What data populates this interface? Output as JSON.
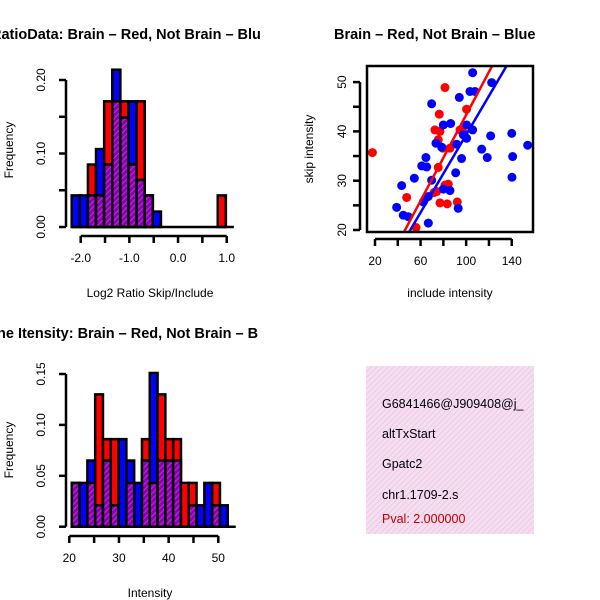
{
  "colors": {
    "red": "#ff0000",
    "blue": "#0000ff",
    "purple": "#8800b8",
    "box": "#f6d8f0",
    "pval": "#c00000"
  },
  "chart_data": [
    {
      "type": "bar",
      "subtype": "overlaid-histogram",
      "title": "RatioData: Brain – Red, Not Brain – Blu",
      "xlabel": "Log2 Ratio Skip/Include",
      "ylabel": "Frequency",
      "xticks": [
        "-2.0",
        "-1.0",
        "0.0",
        "1.0"
      ],
      "yticks": [
        "0.00",
        "0.10",
        "0.20"
      ],
      "bin_start": -2.185,
      "bin_width": 0.1667,
      "series": [
        {
          "name": "Brain",
          "color": "red",
          "values": [
            0,
            0,
            0.085,
            0.043,
            0.171,
            0.171,
            0.171,
            0.085,
            0.171,
            0.043,
            0,
            0,
            0,
            0,
            0,
            0,
            0,
            0,
            0.043
          ]
        },
        {
          "name": "Not Brain",
          "color": "blue",
          "values": [
            0.043,
            0.043,
            0.043,
            0.106,
            0.085,
            0.214,
            0.149,
            0.171,
            0.064,
            0.043,
            0.021,
            0,
            0,
            0,
            0,
            0,
            0,
            0,
            0
          ]
        }
      ],
      "xlim": [
        -2.2,
        1.0
      ],
      "ylim": [
        0,
        0.2
      ]
    },
    {
      "type": "scatter",
      "title": "Brain – Red, Not Brain – Blue",
      "xlabel": "include intensity",
      "ylabel": "skip intensity",
      "xticks": [
        "20",
        "60",
        "100",
        "140"
      ],
      "yticks": [
        "20",
        "30",
        "40",
        "50"
      ],
      "xlim": [
        13,
        158.6
      ],
      "ylim": [
        19.6,
        53.3
      ],
      "series": [
        {
          "name": "Brain",
          "color": "red",
          "points": [
            [
              17.7,
              35.7
            ],
            [
              81.4,
              48.9
            ],
            [
              100.4,
              44.5
            ],
            [
              76.4,
              43.5
            ],
            [
              72.6,
              40.3
            ],
            [
              77,
              40
            ],
            [
              94.6,
              40.3
            ],
            [
              97.5,
              39.7
            ],
            [
              75.5,
              38.3
            ],
            [
              79.4,
              36.6
            ],
            [
              85.8,
              36.6
            ],
            [
              75.5,
              32.7
            ],
            [
              74.1,
              27.8
            ],
            [
              81.4,
              29.1
            ],
            [
              84.3,
              29.3
            ],
            [
              47.8,
              26.6
            ],
            [
              77,
              25.5
            ],
            [
              83.4,
              25.3
            ],
            [
              92.2,
              25.7
            ],
            [
              56,
              20.5
            ],
            [
              71.8,
              27.6
            ]
          ],
          "fit": {
            "slope": 0.4356,
            "intercept": -0.21
          }
        },
        {
          "name": "Not Brain",
          "color": "blue",
          "points": [
            [
              105.7,
              51.9
            ],
            [
              122.4,
              49.9
            ],
            [
              103.3,
              48.1
            ],
            [
              107.7,
              48.1
            ],
            [
              94,
              46.9
            ],
            [
              69.7,
              45.6
            ],
            [
              80,
              41.3
            ],
            [
              86.4,
              41.6
            ],
            [
              100.4,
              41.3
            ],
            [
              105.7,
              40.3
            ],
            [
              97.5,
              39.3
            ],
            [
              100.4,
              38.6
            ],
            [
              140,
              39.6
            ],
            [
              121.5,
              39.1
            ],
            [
              73.5,
              37.6
            ],
            [
              78.5,
              36.8
            ],
            [
              91.7,
              37.4
            ],
            [
              154,
              37.2
            ],
            [
              113.6,
              36.4
            ],
            [
              118.5,
              34.7
            ],
            [
              140.8,
              34.9
            ],
            [
              96,
              34.5
            ],
            [
              64.7,
              34.7
            ],
            [
              61,
              33
            ],
            [
              65.4,
              32.8
            ],
            [
              90.8,
              31.6
            ],
            [
              54.5,
              30.5
            ],
            [
              140.2,
              30.7
            ],
            [
              69.7,
              30.1
            ],
            [
              43.4,
              29
            ],
            [
              80,
              28.3
            ],
            [
              85.8,
              28
            ],
            [
              66.8,
              26.8
            ],
            [
              39,
              24.6
            ],
            [
              44.8,
              23
            ],
            [
              49.2,
              22.7
            ],
            [
              93,
              24.4
            ],
            [
              66.8,
              21.4
            ],
            [
              62.4,
              25.7
            ]
          ],
          "fit": {
            "slope": 0.394,
            "intercept": -0.09
          }
        }
      ]
    },
    {
      "type": "bar",
      "subtype": "overlaid-histogram",
      "title": "ne Itensity: Brain – Red, Not Brain – B",
      "xlabel": "Intensity",
      "ylabel": "Frequency",
      "xticks": [
        "20",
        "30",
        "40",
        "50"
      ],
      "yticks": [
        "0.00",
        "0.05",
        "0.10",
        "0.15"
      ],
      "bin_start": 20.5,
      "bin_width": 1.57,
      "series": [
        {
          "name": "Brain",
          "color": "red",
          "values": [
            0.043,
            0,
            0.043,
            0.13,
            0.086,
            0.086,
            0,
            0.043,
            0,
            0.086,
            0.043,
            0.13,
            0.086,
            0.086,
            0.043,
            0.043,
            0,
            0,
            0.043,
            0
          ]
        },
        {
          "name": "Not Brain",
          "color": "blue",
          "values": [
            0.043,
            0.043,
            0.065,
            0.021,
            0.065,
            0.021,
            0.086,
            0.065,
            0.043,
            0.065,
            0.151,
            0.065,
            0.065,
            0.065,
            0,
            0.021,
            0.021,
            0.043,
            0.021,
            0.021
          ]
        }
      ],
      "xlim": [
        20,
        50
      ],
      "ylim": [
        0,
        0.15
      ]
    }
  ],
  "info": {
    "id": "G6841466@J909408@j_",
    "event_type": "altTxStart",
    "gene": "Gpatc2",
    "location": "chr1.1709-2.s",
    "pval": "Pval: 2.000000"
  }
}
